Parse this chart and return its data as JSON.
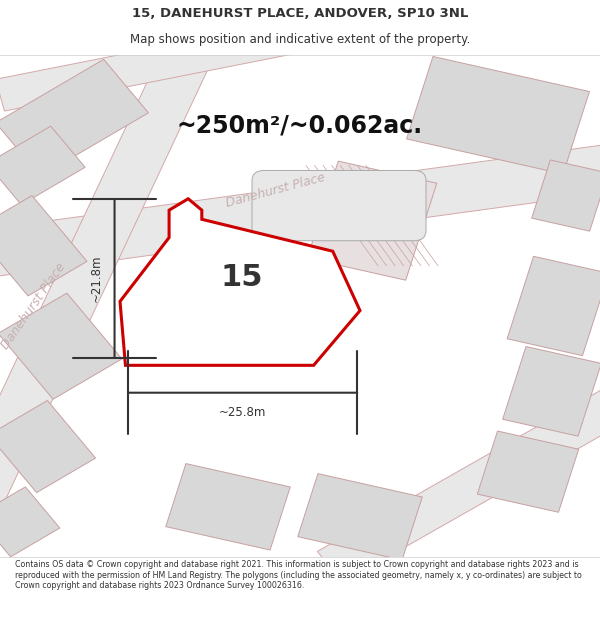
{
  "title_line1": "15, DANEHURST PLACE, ANDOVER, SP10 3NL",
  "title_line2": "Map shows position and indicative extent of the property.",
  "area_text": "~250m²/~0.062ac.",
  "number_label": "15",
  "width_label": "~25.8m",
  "height_label": "~21.8m",
  "street_label_left": "Danehurst Place",
  "street_label_center": "Danehurst Place",
  "footer_text": "Contains OS data © Crown copyright and database right 2021. This information is subject to Crown copyright and database rights 2023 and is reproduced with the permission of HM Land Registry. The polygons (including the associated geometry, namely x, y co-ordinates) are subject to Crown copyright and database rights 2023 Ordnance Survey 100026316.",
  "title_fontsize": 9.5,
  "subtitle_fontsize": 8.5,
  "area_fontsize": 17,
  "number_fontsize": 22,
  "dim_fontsize": 8.5,
  "street_fontsize": 9,
  "footer_fontsize": 5.7,
  "map_bg": "#f5f5f5",
  "plot_fill": "#ffffff",
  "plot_edge": "#cc0000",
  "road_fill": "#e8e8e8",
  "road_edge": "#d4a8a8",
  "building_fill": "#d8d8d8",
  "building_edge": "#c8a0a0",
  "dim_color": "#333333",
  "text_color": "#333333",
  "street_color": "#c8b0b0"
}
